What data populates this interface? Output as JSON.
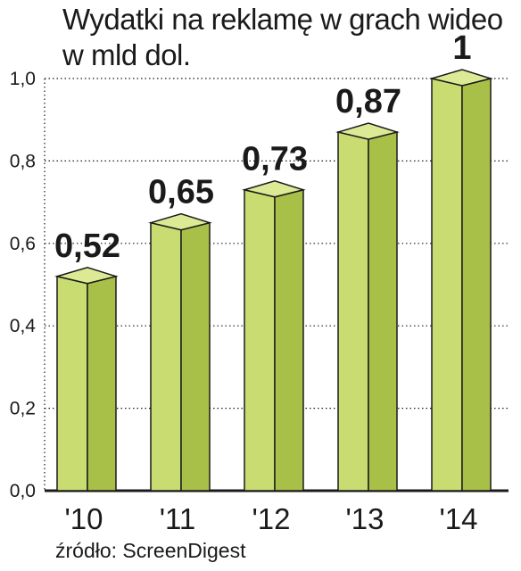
{
  "chart_data": {
    "type": "bar",
    "title": "Wydatki na reklamę w grach wideo",
    "subtitle": "w mld dol.",
    "categories": [
      "'10",
      "'11",
      "'12",
      "'13",
      "'14"
    ],
    "values": [
      0.52,
      0.65,
      0.73,
      0.87,
      1
    ],
    "value_labels": [
      "0,52",
      "0,65",
      "0,73",
      "0,87",
      "1"
    ],
    "yticks": [
      "0,0",
      "0,2",
      "0,4",
      "0,6",
      "0,8",
      "1,0"
    ],
    "ytick_values": [
      0,
      0.2,
      0.4,
      0.6,
      0.8,
      1.0
    ],
    "ylim": [
      0,
      1.0
    ],
    "grid": true,
    "source": "źródło: ScreenDigest",
    "colors": {
      "bar_front": "#c9dc72",
      "bar_side": "#a9c048",
      "bar_top": "#dcea96",
      "grid": "#1a1a1a"
    }
  }
}
